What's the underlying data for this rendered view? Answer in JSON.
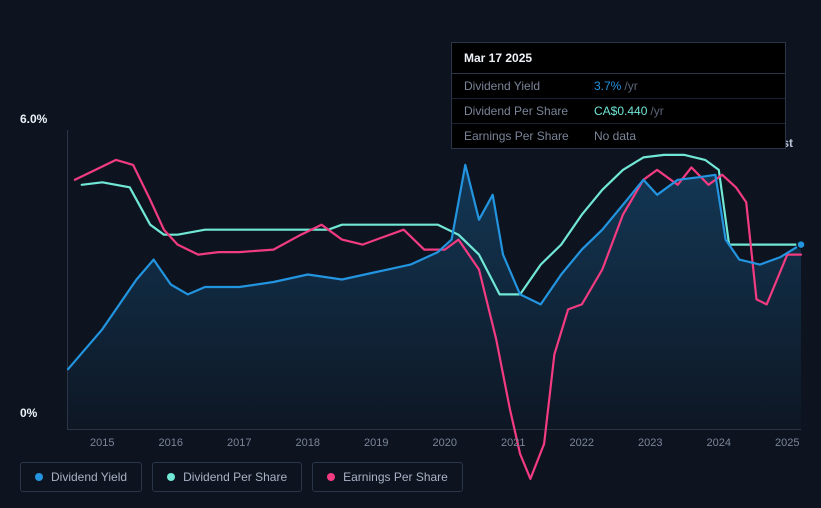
{
  "chart": {
    "type": "line",
    "background_color": "#0d1420",
    "grid_color": "#2a3548",
    "text_color": "#a0a8b8",
    "y_axis": {
      "min": 0,
      "max": 6.0,
      "labels": [
        {
          "v": 6.0,
          "text": "6.0%"
        },
        {
          "v": 0,
          "text": "0%"
        }
      ]
    },
    "x_axis": {
      "start": 2014.5,
      "end": 2025.2,
      "ticks": [
        2015,
        2016,
        2017,
        2018,
        2019,
        2020,
        2021,
        2022,
        2023,
        2024,
        2025
      ]
    },
    "past_label": "Past",
    "series": {
      "dividend_yield": {
        "label": "Dividend Yield",
        "color": "#2394df",
        "area_fill": true,
        "points": [
          [
            2014.5,
            1.2
          ],
          [
            2014.75,
            1.6
          ],
          [
            2015.0,
            2.0
          ],
          [
            2015.25,
            2.5
          ],
          [
            2015.5,
            3.0
          ],
          [
            2015.75,
            3.4
          ],
          [
            2016.0,
            2.9
          ],
          [
            2016.25,
            2.7
          ],
          [
            2016.5,
            2.85
          ],
          [
            2017.0,
            2.85
          ],
          [
            2017.5,
            2.95
          ],
          [
            2018.0,
            3.1
          ],
          [
            2018.5,
            3.0
          ],
          [
            2019.0,
            3.15
          ],
          [
            2019.5,
            3.3
          ],
          [
            2019.9,
            3.55
          ],
          [
            2020.1,
            3.8
          ],
          [
            2020.3,
            5.3
          ],
          [
            2020.5,
            4.2
          ],
          [
            2020.7,
            4.7
          ],
          [
            2020.85,
            3.5
          ],
          [
            2021.1,
            2.7
          ],
          [
            2021.4,
            2.5
          ],
          [
            2021.7,
            3.1
          ],
          [
            2022.0,
            3.6
          ],
          [
            2022.3,
            4.0
          ],
          [
            2022.6,
            4.5
          ],
          [
            2022.9,
            5.0
          ],
          [
            2023.1,
            4.7
          ],
          [
            2023.4,
            5.0
          ],
          [
            2023.7,
            5.05
          ],
          [
            2023.95,
            5.1
          ],
          [
            2024.1,
            3.8
          ],
          [
            2024.3,
            3.4
          ],
          [
            2024.6,
            3.3
          ],
          [
            2024.9,
            3.45
          ],
          [
            2025.2,
            3.7
          ]
        ]
      },
      "dividend_per_share": {
        "label": "Dividend Per Share",
        "color": "#71e7d6",
        "points": [
          [
            2014.7,
            4.9
          ],
          [
            2015.0,
            4.95
          ],
          [
            2015.4,
            4.85
          ],
          [
            2015.7,
            4.1
          ],
          [
            2015.9,
            3.9
          ],
          [
            2016.1,
            3.9
          ],
          [
            2016.5,
            4.0
          ],
          [
            2017.0,
            4.0
          ],
          [
            2017.5,
            4.0
          ],
          [
            2018.3,
            4.0
          ],
          [
            2018.5,
            4.1
          ],
          [
            2019.0,
            4.1
          ],
          [
            2019.5,
            4.1
          ],
          [
            2019.9,
            4.1
          ],
          [
            2020.2,
            3.9
          ],
          [
            2020.5,
            3.5
          ],
          [
            2020.8,
            2.7
          ],
          [
            2021.1,
            2.7
          ],
          [
            2021.4,
            3.3
          ],
          [
            2021.7,
            3.7
          ],
          [
            2022.0,
            4.3
          ],
          [
            2022.3,
            4.8
          ],
          [
            2022.6,
            5.2
          ],
          [
            2022.9,
            5.45
          ],
          [
            2023.2,
            5.5
          ],
          [
            2023.5,
            5.5
          ],
          [
            2023.8,
            5.4
          ],
          [
            2024.0,
            5.2
          ],
          [
            2024.15,
            3.7
          ],
          [
            2024.3,
            3.7
          ],
          [
            2024.6,
            3.7
          ],
          [
            2025.0,
            3.7
          ],
          [
            2025.2,
            3.7
          ]
        ]
      },
      "earnings_per_share": {
        "label": "Earnings Per Share",
        "color": "#f23b80",
        "points": [
          [
            2014.6,
            5.0
          ],
          [
            2014.9,
            5.2
          ],
          [
            2015.2,
            5.4
          ],
          [
            2015.45,
            5.3
          ],
          [
            2015.7,
            4.6
          ],
          [
            2015.9,
            4.0
          ],
          [
            2016.1,
            3.7
          ],
          [
            2016.4,
            3.5
          ],
          [
            2016.7,
            3.55
          ],
          [
            2017.0,
            3.55
          ],
          [
            2017.5,
            3.6
          ],
          [
            2017.9,
            3.9
          ],
          [
            2018.2,
            4.1
          ],
          [
            2018.5,
            3.8
          ],
          [
            2018.8,
            3.7
          ],
          [
            2019.1,
            3.85
          ],
          [
            2019.4,
            4.0
          ],
          [
            2019.7,
            3.6
          ],
          [
            2020.0,
            3.6
          ],
          [
            2020.2,
            3.8
          ],
          [
            2020.5,
            3.2
          ],
          [
            2020.75,
            1.8
          ],
          [
            2020.95,
            0.4
          ],
          [
            2021.1,
            -0.5
          ],
          [
            2021.25,
            -1.0
          ],
          [
            2021.45,
            -0.3
          ],
          [
            2021.6,
            1.5
          ],
          [
            2021.8,
            2.4
          ],
          [
            2022.0,
            2.5
          ],
          [
            2022.3,
            3.2
          ],
          [
            2022.6,
            4.3
          ],
          [
            2022.9,
            5.0
          ],
          [
            2023.1,
            5.2
          ],
          [
            2023.4,
            4.9
          ],
          [
            2023.6,
            5.25
          ],
          [
            2023.85,
            4.9
          ],
          [
            2024.05,
            5.1
          ],
          [
            2024.25,
            4.85
          ],
          [
            2024.4,
            4.55
          ],
          [
            2024.55,
            2.6
          ],
          [
            2024.7,
            2.5
          ],
          [
            2024.85,
            3.0
          ],
          [
            2025.0,
            3.5
          ],
          [
            2025.2,
            3.5
          ]
        ]
      }
    }
  },
  "tooltip": {
    "date": "Mar 17 2025",
    "rows": [
      {
        "label": "Dividend Yield",
        "value": "3.7%",
        "suffix": "/yr",
        "color_class": "hl-blue"
      },
      {
        "label": "Dividend Per Share",
        "value": "CA$0.440",
        "suffix": "/yr",
        "color_class": "hl-teal"
      },
      {
        "label": "Earnings Per Share",
        "value": "No data",
        "suffix": "",
        "color_class": ""
      }
    ]
  },
  "legend": [
    {
      "label": "Dividend Yield",
      "color": "#2394df"
    },
    {
      "label": "Dividend Per Share",
      "color": "#71e7d6"
    },
    {
      "label": "Earnings Per Share",
      "color": "#f23b80"
    }
  ]
}
